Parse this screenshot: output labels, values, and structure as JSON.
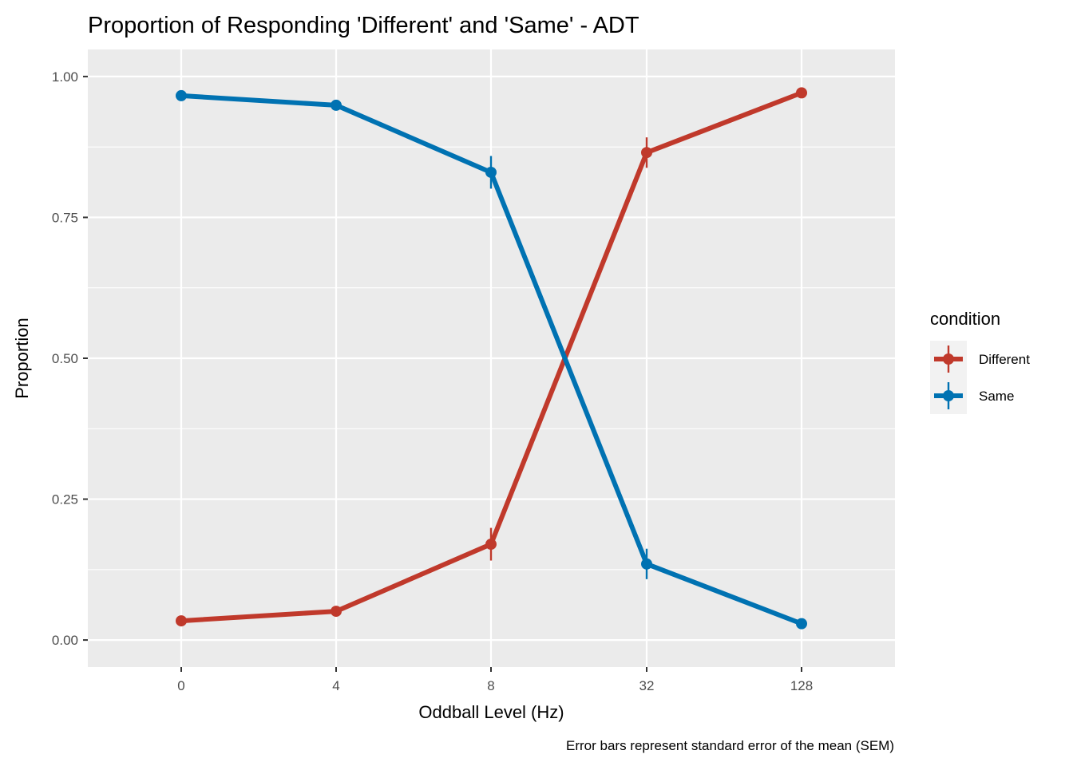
{
  "chart_data": {
    "type": "line",
    "title": "Proportion of Responding 'Different' and 'Same' - ADT",
    "xlabel": "Oddball Level (Hz)",
    "ylabel": "Proportion",
    "caption": "Error bars represent standard error of the mean (SEM)",
    "categories": [
      "0",
      "4",
      "8",
      "32",
      "128"
    ],
    "ylim": [
      -0.048,
      1.048
    ],
    "y_ticks": [
      0.0,
      0.25,
      0.5,
      0.75,
      1.0
    ],
    "y_tick_labels": [
      "0.00",
      "0.25",
      "0.50",
      "0.75",
      "1.00"
    ],
    "grid": true,
    "legend": {
      "title": "condition",
      "position": "right"
    },
    "series": [
      {
        "name": "Different",
        "color": "#C0392B",
        "values": [
          0.034,
          0.051,
          0.17,
          0.865,
          0.971
        ],
        "sem": [
          0.004,
          0.006,
          0.029,
          0.027,
          0.004
        ]
      },
      {
        "name": "Same",
        "color": "#0072B2",
        "values": [
          0.966,
          0.949,
          0.83,
          0.135,
          0.029
        ],
        "sem": [
          0.004,
          0.006,
          0.029,
          0.027,
          0.004
        ]
      }
    ]
  }
}
